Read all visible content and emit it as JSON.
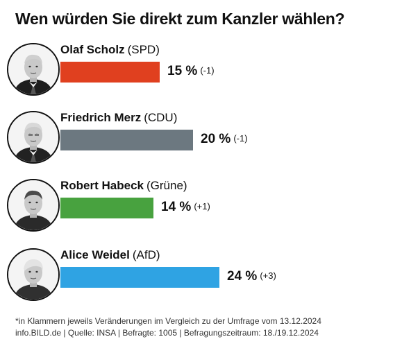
{
  "title": "Wen würden Sie direkt zum Kanzler wählen?",
  "chart_data": {
    "type": "bar",
    "orientation": "horizontal",
    "title": "Wen würden Sie direkt zum Kanzler wählen?",
    "categories": [
      "Olaf Scholz (SPD)",
      "Friedrich Merz (CDU)",
      "Robert Habeck (Grüne)",
      "Alice Weidel (AfD)"
    ],
    "values": [
      15,
      20,
      14,
      24
    ],
    "changes": [
      -1,
      -1,
      1,
      3
    ],
    "unit": "%",
    "grid": false,
    "legend": "none"
  },
  "rows": [
    {
      "name": "Olaf Scholz",
      "party": "(SPD)",
      "value": 15,
      "value_label": "15 %",
      "change_label": "(-1)",
      "color": "#e0401f",
      "portrait": "portrait-olaf-scholz"
    },
    {
      "name": "Friedrich Merz",
      "party": "(CDU)",
      "value": 20,
      "value_label": "20 %",
      "change_label": "(-1)",
      "color": "#6c7880",
      "portrait": "portrait-friedrich-merz"
    },
    {
      "name": "Robert Habeck",
      "party": "(Grüne)",
      "value": 14,
      "value_label": "14 %",
      "change_label": "(+1)",
      "color": "#48a23f",
      "portrait": "portrait-robert-habeck"
    },
    {
      "name": "Alice Weidel",
      "party": "(AfD)",
      "value": 24,
      "value_label": "24 %",
      "change_label": "(+3)",
      "color": "#2fa3e3",
      "portrait": "portrait-alice-weidel"
    }
  ],
  "footnote": {
    "line1": "*in Klammern jeweils Veränderungen im Vergleich zu der Umfrage vom 13.12.2024",
    "line2": "info.BILD.de | Quelle: INSA | Befragte: 1005 | Befragungszeitraum: 18./19.12.2024"
  }
}
